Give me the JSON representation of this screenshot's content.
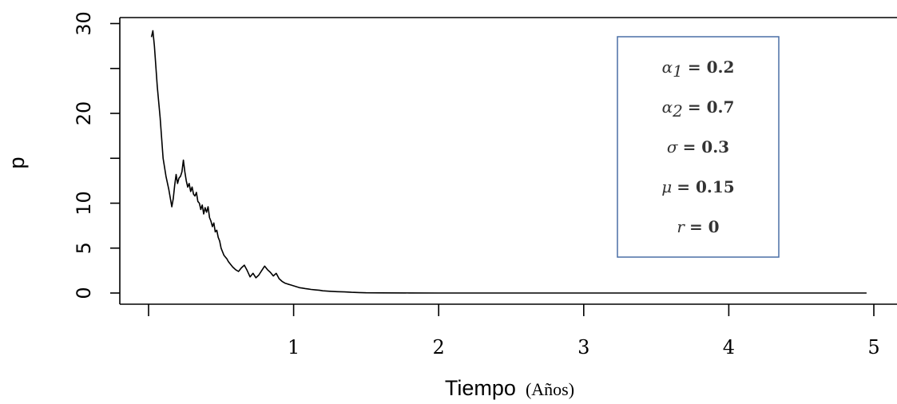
{
  "chart_data": {
    "type": "line",
    "xlabel": "Tiempo",
    "xlabel_unit": "(Años)",
    "ylabel": "p",
    "xlim": [
      -0.2,
      5.2
    ],
    "ylim": [
      -1.2,
      31
    ],
    "x_ticks": [
      1,
      2,
      3,
      4,
      5
    ],
    "x_minor_ticks": [
      0
    ],
    "y_ticks": [
      0,
      5,
      10,
      20,
      30
    ],
    "y_tick_labels": [
      "0",
      "5",
      "10",
      "20",
      "30"
    ],
    "y_minor_ticks": [
      15,
      25
    ],
    "grid": false,
    "box": "top-right",
    "series": [
      {
        "color": "#000000",
        "x": [
          0.02,
          0.03,
          0.04,
          0.06,
          0.08,
          0.1,
          0.12,
          0.14,
          0.16,
          0.17,
          0.18,
          0.19,
          0.2,
          0.21,
          0.22,
          0.23,
          0.24,
          0.25,
          0.26,
          0.27,
          0.28,
          0.29,
          0.3,
          0.31,
          0.32,
          0.33,
          0.34,
          0.35,
          0.36,
          0.37,
          0.38,
          0.39,
          0.4,
          0.41,
          0.42,
          0.43,
          0.44,
          0.45,
          0.46,
          0.47,
          0.48,
          0.49,
          0.5,
          0.51,
          0.52,
          0.53,
          0.54,
          0.55,
          0.56,
          0.57,
          0.58,
          0.6,
          0.62,
          0.64,
          0.66,
          0.68,
          0.7,
          0.72,
          0.74,
          0.76,
          0.78,
          0.8,
          0.82,
          0.84,
          0.86,
          0.88,
          0.9,
          0.92,
          0.94,
          0.96,
          0.98,
          1.0,
          1.02,
          1.04,
          1.06,
          1.08,
          1.1,
          1.12,
          1.15,
          1.18,
          1.2,
          1.25,
          1.3,
          1.35,
          1.4,
          1.45,
          1.5,
          1.6,
          1.8,
          2.0,
          2.5,
          3.0,
          3.5,
          4.0,
          4.5,
          4.95
        ],
        "values": [
          28.5,
          29.2,
          27.5,
          23.0,
          19.5,
          15.0,
          13.0,
          11.5,
          9.6,
          10.5,
          12.0,
          13.2,
          12.2,
          12.8,
          13.0,
          13.5,
          14.8,
          13.5,
          12.5,
          11.8,
          12.2,
          11.3,
          11.8,
          11.0,
          10.8,
          11.2,
          10.2,
          10.0,
          9.3,
          9.8,
          8.8,
          9.5,
          9.0,
          9.6,
          8.4,
          8.0,
          7.4,
          7.8,
          6.8,
          7.0,
          6.2,
          5.8,
          5.0,
          4.6,
          4.2,
          4.0,
          3.8,
          3.5,
          3.3,
          3.1,
          2.9,
          2.6,
          2.4,
          2.8,
          3.1,
          2.5,
          1.8,
          2.2,
          1.7,
          2.0,
          2.5,
          3.0,
          2.6,
          2.3,
          1.9,
          2.2,
          1.6,
          1.3,
          1.1,
          1.0,
          0.9,
          0.8,
          0.7,
          0.6,
          0.55,
          0.5,
          0.45,
          0.4,
          0.35,
          0.3,
          0.25,
          0.2,
          0.15,
          0.12,
          0.08,
          0.05,
          0.03,
          0.02,
          0.01,
          0.0,
          0.0,
          0.0,
          0.0,
          0.0,
          0.0,
          0.0
        ]
      }
    ],
    "annotations": [
      {
        "symbol": "α",
        "sub": "1",
        "rest": "= 0.2"
      },
      {
        "symbol": "α",
        "sub": "2",
        "rest": "= 0.7"
      },
      {
        "symbol": "σ",
        "sub": "",
        "rest": "= 0.3"
      },
      {
        "symbol": "μ",
        "sub": "",
        "rest": "= 0.15"
      },
      {
        "symbol": "r",
        "sub": "",
        "rest": "= 0"
      }
    ]
  }
}
